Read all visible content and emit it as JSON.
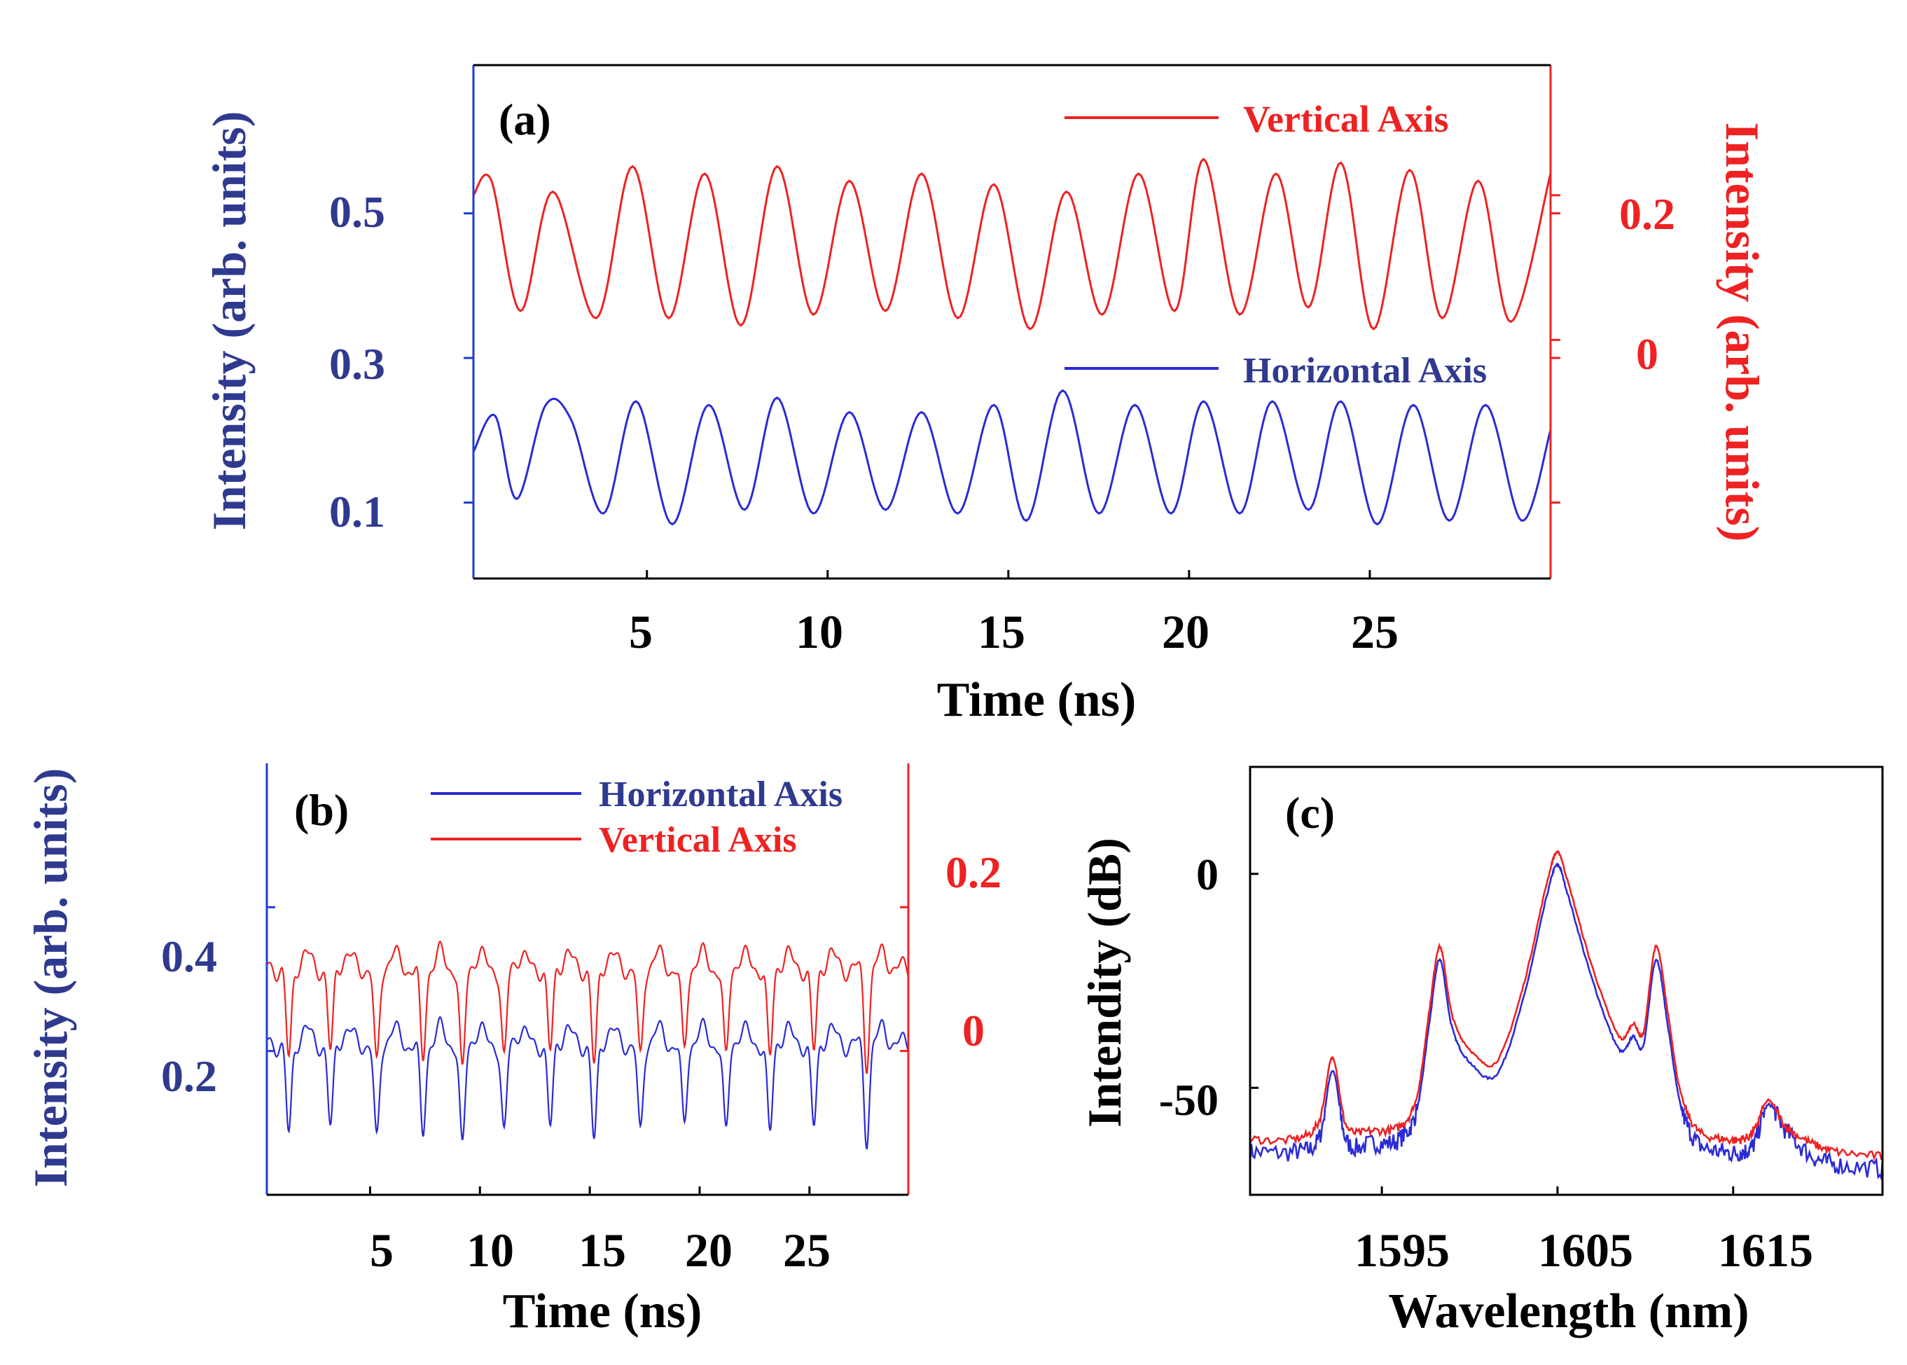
{
  "colors": {
    "blue": "#2b2bd6",
    "red": "#ee2222",
    "axis_blue": "#1f3fcf",
    "label_blue": "#2f3a8f",
    "black": "#000000"
  },
  "chart_data": [
    {
      "panel": "(a)",
      "type": "line",
      "xlabel": "Time (ns)",
      "xlim": [
        0.2,
        30.0
      ],
      "xticks": [
        5,
        10,
        15,
        20,
        25
      ],
      "xtick_labels": [
        "5",
        "10",
        "15",
        "20",
        "25"
      ],
      "ylabel_left": "Intensity (arb. units)",
      "ylim_left": [
        -0.005,
        0.705
      ],
      "yticks_left": [
        0.1,
        0.3,
        0.5
      ],
      "ytick_labels_left": [
        "0.1",
        "0.3",
        "0.5"
      ],
      "ylabel_right": "Intensity (arb. units)",
      "ylim_right": [
        -0.33,
        0.38
      ],
      "yticks_right": [
        0.0,
        0.2
      ],
      "ytick_labels_right": [
        "0",
        "0.2"
      ],
      "legend_position": "top-right",
      "series": [
        {
          "name": "Vertical Axis",
          "axis": "right",
          "color": "red",
          "x": [
            0.2,
            0.7,
            1.5,
            2.4,
            3.6,
            4.6,
            5.6,
            6.6,
            7.6,
            8.6,
            9.6,
            10.6,
            11.6,
            12.6,
            13.6,
            14.6,
            15.6,
            16.6,
            17.6,
            18.6,
            19.6,
            20.4,
            21.4,
            22.4,
            23.3,
            24.2,
            25.1,
            26.1,
            27.0,
            28.0,
            28.9,
            30.0
          ],
          "y": [
            0.2,
            0.22,
            0.04,
            0.205,
            0.03,
            0.24,
            0.03,
            0.23,
            0.02,
            0.24,
            0.035,
            0.22,
            0.04,
            0.23,
            0.03,
            0.215,
            0.015,
            0.205,
            0.035,
            0.23,
            0.04,
            0.25,
            0.035,
            0.23,
            0.045,
            0.245,
            0.015,
            0.235,
            0.03,
            0.22,
            0.025,
            0.23
          ]
        },
        {
          "name": "Horizontal Axis",
          "axis": "left",
          "color": "blue",
          "x": [
            0.2,
            0.8,
            1.4,
            2.2,
            2.9,
            3.8,
            4.7,
            5.7,
            6.7,
            7.7,
            8.6,
            9.6,
            10.6,
            11.6,
            12.6,
            13.6,
            14.6,
            15.5,
            16.5,
            17.5,
            18.5,
            19.5,
            20.4,
            21.4,
            22.3,
            23.3,
            24.2,
            25.2,
            26.2,
            27.2,
            28.2,
            29.2,
            30.0
          ],
          "y": [
            0.17,
            0.22,
            0.105,
            0.235,
            0.215,
            0.085,
            0.24,
            0.07,
            0.235,
            0.09,
            0.245,
            0.085,
            0.225,
            0.09,
            0.225,
            0.085,
            0.235,
            0.075,
            0.255,
            0.085,
            0.235,
            0.085,
            0.24,
            0.085,
            0.24,
            0.09,
            0.24,
            0.07,
            0.235,
            0.075,
            0.235,
            0.075,
            0.2
          ]
        }
      ]
    },
    {
      "panel": "(b)",
      "type": "line",
      "xlabel": "Time (ns)",
      "xlim": [
        0.3,
        29.5
      ],
      "xticks": [
        5,
        10,
        15,
        20,
        25
      ],
      "xtick_labels": [
        "5",
        "10",
        "15",
        "20",
        "25"
      ],
      "ylabel_left": "Intensity (arb. units)",
      "ylim_left": [
        0.0,
        0.6
      ],
      "yticks_left": [
        0.2,
        0.4
      ],
      "ytick_labels_left": [
        "0.2",
        "0.4"
      ],
      "ylim_right": [
        -0.13,
        0.47
      ],
      "yticks_right": [
        0.0,
        0.2
      ],
      "ytick_labels_right": [
        "0",
        "0.2"
      ],
      "legend_position": "top",
      "dip_times": [
        1.3,
        3.2,
        5.3,
        7.4,
        9.2,
        11.1,
        13.2,
        15.2,
        17.3,
        19.3,
        21.2,
        23.2,
        25.2,
        27.6
      ],
      "dip_depths": [
        0.13,
        0.12,
        0.14,
        0.13,
        0.15,
        0.13,
        0.12,
        0.14,
        0.13,
        0.12,
        0.13,
        0.13,
        0.12,
        0.13
      ],
      "series": [
        {
          "name": "Horizontal Axis",
          "axis": "left",
          "color": "blue",
          "baseline": 0.21
        },
        {
          "name": "Vertical Axis",
          "axis": "right",
          "color": "red",
          "baseline": 0.185
        }
      ]
    },
    {
      "panel": "(c)",
      "type": "line",
      "xlabel": "Wavelength (nm)",
      "xlim": [
        1587.5,
        1623.5
      ],
      "xticks": [
        1595,
        1605,
        1615
      ],
      "xtick_labels": [
        "1595",
        "1605",
        "1615"
      ],
      "ylabel": "Intendity (dB)",
      "ylim": [
        -75,
        25
      ],
      "yticks": [
        -50,
        0
      ],
      "ytick_labels": [
        "-50",
        "0"
      ],
      "series": [
        {
          "name": "blue spectrum",
          "color": "blue",
          "x": [
            1587.5,
            1590.0,
            1591.4,
            1592.2,
            1593.0,
            1594.5,
            1596.0,
            1597.0,
            1597.7,
            1598.3,
            1599.0,
            1600.0,
            1601.5,
            1603.0,
            1604.4,
            1605.0,
            1605.6,
            1607.0,
            1608.5,
            1609.3,
            1609.9,
            1610.6,
            1611.3,
            1612.0,
            1613.0,
            1614.5,
            1615.5,
            1616.2,
            1617.0,
            1618.0,
            1619.5,
            1621.0,
            1623.5
          ],
          "y": [
            -65.0,
            -65.0,
            -62.0,
            -46.0,
            -62.5,
            -63.0,
            -62.0,
            -55.0,
            -35.0,
            -20.0,
            -36.0,
            -44.0,
            -47.0,
            -30.0,
            -5.0,
            2.0,
            -5.0,
            -25.0,
            -41.0,
            -38.0,
            -40.0,
            -20.0,
            -36.0,
            -54.0,
            -63.0,
            -65.0,
            -65.0,
            -63.0,
            -54.0,
            -60.0,
            -66.0,
            -68.0,
            -69.0
          ]
        },
        {
          "name": "red spectrum",
          "color": "red",
          "x": [
            1587.5,
            1590.0,
            1591.4,
            1592.2,
            1593.0,
            1594.5,
            1596.0,
            1597.0,
            1597.7,
            1598.3,
            1599.0,
            1600.0,
            1601.5,
            1603.0,
            1604.4,
            1605.0,
            1605.6,
            1607.0,
            1608.5,
            1609.3,
            1609.9,
            1610.6,
            1611.3,
            1612.0,
            1613.0,
            1614.5,
            1615.5,
            1616.2,
            1617.0,
            1618.0,
            1619.5,
            1621.0,
            1623.5
          ],
          "y": [
            -62.0,
            -62.0,
            -58.0,
            -43.0,
            -59.0,
            -60.0,
            -59.0,
            -52.0,
            -32.0,
            -17.0,
            -33.0,
            -41.0,
            -44.0,
            -27.0,
            -2.0,
            5.0,
            -2.0,
            -22.0,
            -38.0,
            -35.0,
            -37.0,
            -17.0,
            -33.0,
            -51.0,
            -60.0,
            -62.0,
            -62.0,
            -60.0,
            -53.0,
            -59.0,
            -63.0,
            -65.0,
            -66.0
          ]
        }
      ]
    }
  ]
}
